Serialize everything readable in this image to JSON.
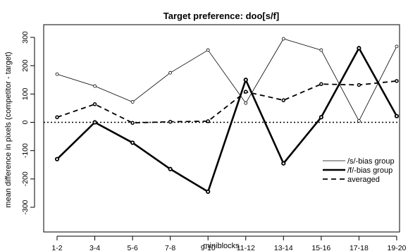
{
  "chart_data": {
    "type": "line",
    "title": "Target preference: doo[s/f]",
    "xlabel": "miniblocks",
    "ylabel": "mean difference in pixels (competitor - target)",
    "categories": [
      "1-2",
      "3-4",
      "5-6",
      "7-8",
      "9-10",
      "11-12",
      "13-14",
      "15-16",
      "17-18",
      "19-20"
    ],
    "ylim": [
      -300,
      300
    ],
    "yticks": [
      -300,
      -200,
      -100,
      0,
      100,
      200,
      300
    ],
    "reference_line": 0,
    "legend_position": "right",
    "series": [
      {
        "name": "/s/-bias group",
        "style": "thin",
        "values": [
          170,
          128,
          72,
          175,
          255,
          68,
          295,
          255,
          5,
          268
        ]
      },
      {
        "name": "/f/-bias group",
        "style": "thick",
        "values": [
          -130,
          0,
          -72,
          -165,
          -245,
          150,
          -145,
          18,
          262,
          22
        ]
      },
      {
        "name": "averaged",
        "style": "dashed",
        "values": [
          18,
          64,
          -2,
          2,
          4,
          108,
          78,
          135,
          132,
          146
        ]
      }
    ]
  }
}
